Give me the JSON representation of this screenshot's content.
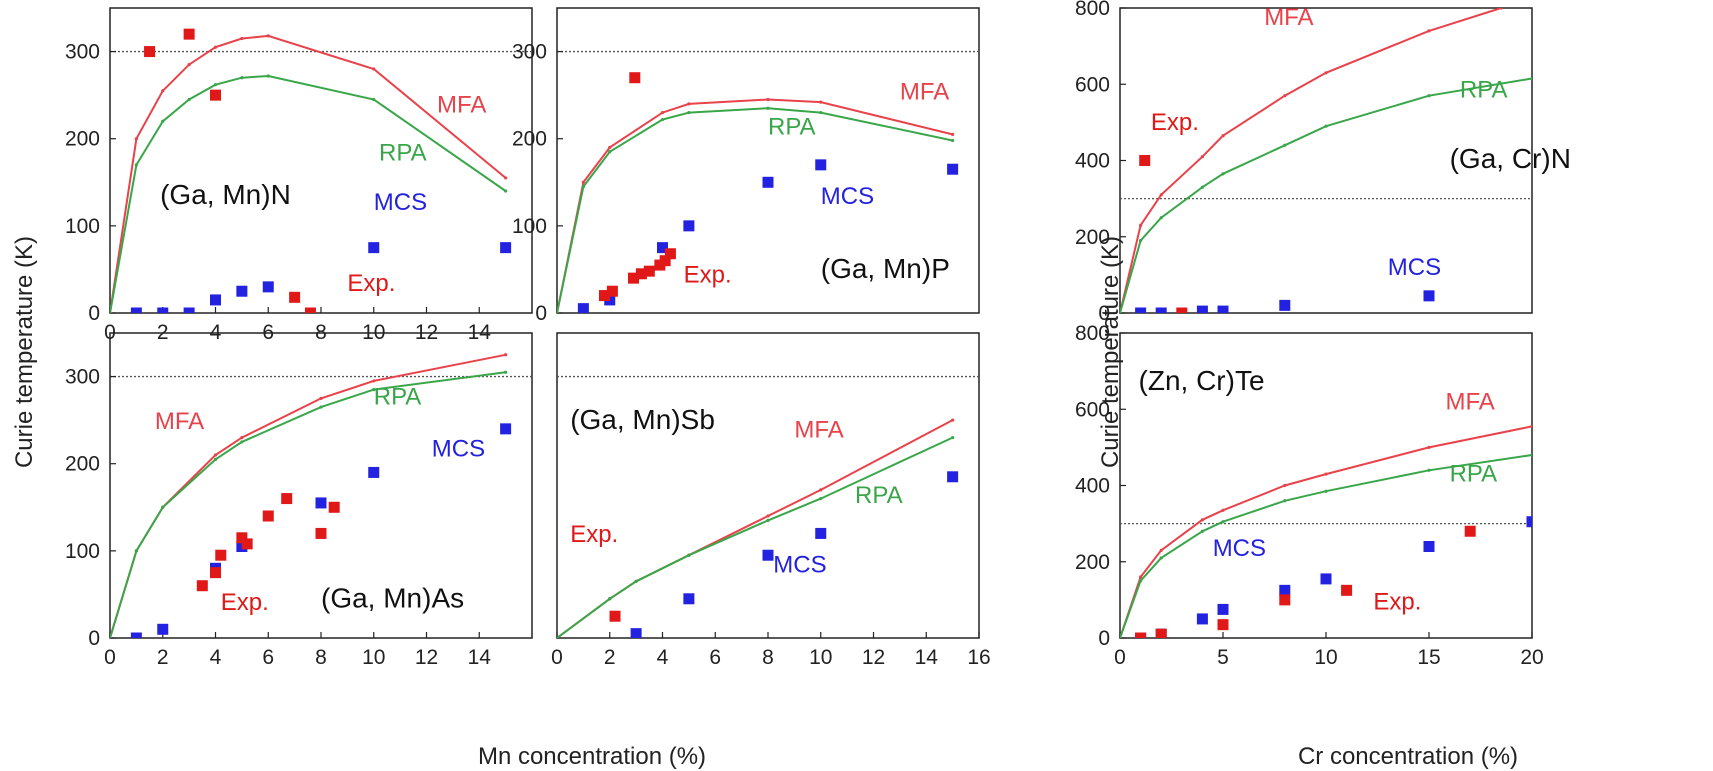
{
  "figure": {
    "mn_xlabel": "Mn concentration (%)",
    "cr_xlabel": "Cr concentration (%)",
    "ylabel": "Curie temperature (K)"
  },
  "colors": {
    "mfa": "#e8424a",
    "rpa": "#3aa64a",
    "mcs": "#2222e0",
    "exp": "#e01818",
    "axis": "#222222",
    "ref": "#555555"
  },
  "chart_data": [
    {
      "id": "gamnn",
      "type": "line",
      "title": "(Ga, Mn)N",
      "xlim": [
        0,
        16
      ],
      "ylim": [
        0,
        350
      ],
      "xticks": [
        0,
        2,
        4,
        6,
        8,
        10,
        12,
        14
      ],
      "yticks": [
        0,
        100,
        200,
        300
      ],
      "reference_line": 300,
      "series": [
        {
          "name": "MFA",
          "kind": "line",
          "color": "#e8424a",
          "x": [
            0,
            1,
            2,
            3,
            4,
            5,
            6,
            10,
            15
          ],
          "y": [
            0,
            200,
            255,
            285,
            305,
            315,
            318,
            280,
            155
          ]
        },
        {
          "name": "RPA",
          "kind": "line",
          "color": "#3aa64a",
          "x": [
            0,
            1,
            2,
            3,
            4,
            5,
            6,
            10,
            15
          ],
          "y": [
            0,
            170,
            220,
            245,
            262,
            270,
            272,
            245,
            140
          ]
        },
        {
          "name": "MCS",
          "kind": "points",
          "color": "#2222e0",
          "x": [
            1,
            2,
            3,
            4,
            5,
            6,
            10,
            15
          ],
          "y": [
            0,
            0,
            0,
            15,
            25,
            30,
            75,
            75
          ]
        },
        {
          "name": "Exp.",
          "kind": "points",
          "color": "#e01818",
          "x": [
            1.5,
            3,
            4,
            7,
            7.6
          ],
          "y": [
            300,
            320,
            250,
            18,
            0
          ]
        }
      ],
      "labels": {
        "MFA": "MFA",
        "RPA": "RPA",
        "MCS": "MCS",
        "Exp.": "Exp."
      }
    },
    {
      "id": "gamnp",
      "type": "line",
      "title": "(Ga, Mn)P",
      "xlim": [
        0,
        16
      ],
      "ylim": [
        0,
        350
      ],
      "xticks": [],
      "yticks": [
        0,
        100,
        200,
        300
      ],
      "reference_line": 300,
      "series": [
        {
          "name": "MFA",
          "kind": "line",
          "color": "#e8424a",
          "x": [
            0,
            1,
            2,
            4,
            5,
            8,
            10,
            15
          ],
          "y": [
            0,
            150,
            190,
            230,
            240,
            245,
            242,
            205
          ]
        },
        {
          "name": "RPA",
          "kind": "line",
          "color": "#3aa64a",
          "x": [
            0,
            1,
            2,
            4,
            5,
            8,
            10,
            15
          ],
          "y": [
            0,
            145,
            185,
            222,
            230,
            235,
            230,
            198
          ]
        },
        {
          "name": "MCS",
          "kind": "points",
          "color": "#2222e0",
          "x": [
            1,
            2,
            4,
            5,
            8,
            10,
            15
          ],
          "y": [
            5,
            15,
            75,
            100,
            150,
            170,
            165
          ]
        },
        {
          "name": "Exp.",
          "kind": "points",
          "color": "#e01818",
          "x": [
            1.8,
            2.1,
            2.9,
            3.2,
            3.5,
            3.9,
            4.1,
            4.3,
            2.95
          ],
          "y": [
            20,
            25,
            40,
            45,
            48,
            55,
            60,
            68,
            270
          ]
        }
      ],
      "labels": {
        "MFA": "MFA",
        "RPA": "RPA",
        "MCS": "MCS",
        "Exp.": "Exp."
      }
    },
    {
      "id": "gamnas",
      "type": "line",
      "title": "(Ga, Mn)As",
      "xlim": [
        0,
        16
      ],
      "ylim": [
        0,
        350
      ],
      "xticks": [
        0,
        2,
        4,
        6,
        8,
        10,
        12,
        14
      ],
      "yticks": [
        0,
        100,
        200,
        300
      ],
      "reference_line": 300,
      "series": [
        {
          "name": "MFA",
          "kind": "line",
          "color": "#e8424a",
          "x": [
            0,
            1,
            2,
            4,
            5,
            8,
            10,
            15
          ],
          "y": [
            0,
            100,
            150,
            210,
            230,
            275,
            295,
            325
          ]
        },
        {
          "name": "RPA",
          "kind": "line",
          "color": "#3aa64a",
          "x": [
            0,
            1,
            2,
            4,
            5,
            8,
            10,
            15
          ],
          "y": [
            0,
            100,
            150,
            205,
            225,
            265,
            285,
            305
          ]
        },
        {
          "name": "MCS",
          "kind": "points",
          "color": "#2222e0",
          "x": [
            1,
            2,
            4,
            5,
            8,
            10,
            15
          ],
          "y": [
            0,
            10,
            80,
            105,
            155,
            190,
            240
          ]
        },
        {
          "name": "Exp.",
          "kind": "points",
          "color": "#e01818",
          "x": [
            3.5,
            4,
            4.2,
            5,
            5.2,
            6,
            6.7,
            8,
            8.5
          ],
          "y": [
            60,
            75,
            95,
            115,
            108,
            140,
            160,
            120,
            150
          ]
        }
      ],
      "labels": {
        "MFA": "MFA",
        "RPA": "RPA",
        "MCS": "MCS",
        "Exp.": "Exp."
      }
    },
    {
      "id": "gamnsb",
      "type": "line",
      "title": "(Ga, Mn)Sb",
      "xlim": [
        0,
        16
      ],
      "ylim": [
        0,
        350
      ],
      "xticks": [
        0,
        2,
        4,
        6,
        8,
        10,
        12,
        14,
        16
      ],
      "yticks": [],
      "reference_line": 300,
      "series": [
        {
          "name": "MFA",
          "kind": "line",
          "color": "#e8424a",
          "x": [
            0,
            2,
            3,
            5,
            8,
            10,
            15
          ],
          "y": [
            0,
            45,
            65,
            95,
            140,
            170,
            250
          ]
        },
        {
          "name": "RPA",
          "kind": "line",
          "color": "#3aa64a",
          "x": [
            0,
            2,
            3,
            5,
            8,
            10,
            15
          ],
          "y": [
            0,
            45,
            65,
            95,
            135,
            160,
            230
          ]
        },
        {
          "name": "MCS",
          "kind": "points",
          "color": "#2222e0",
          "x": [
            3,
            5,
            8,
            10,
            15
          ],
          "y": [
            5,
            45,
            95,
            120,
            185
          ]
        },
        {
          "name": "Exp.",
          "kind": "points",
          "color": "#e01818",
          "x": [
            2.2
          ],
          "y": [
            25
          ]
        }
      ],
      "labels": {
        "MFA": "MFA",
        "RPA": "RPA",
        "MCS": "MCS",
        "Exp.": "Exp."
      }
    },
    {
      "id": "gacrn",
      "type": "line",
      "title": "(Ga, Cr)N",
      "xlim": [
        0,
        20
      ],
      "ylim": [
        0,
        800
      ],
      "xticks": [],
      "yticks": [
        0,
        200,
        400,
        600,
        800
      ],
      "reference_line": 300,
      "series": [
        {
          "name": "MFA",
          "kind": "line",
          "color": "#e8424a",
          "x": [
            0,
            1,
            2,
            4,
            5,
            8,
            10,
            15,
            18.5
          ],
          "y": [
            0,
            230,
            310,
            410,
            465,
            570,
            630,
            740,
            800
          ]
        },
        {
          "name": "RPA",
          "kind": "line",
          "color": "#3aa64a",
          "x": [
            0,
            1,
            2,
            4,
            5,
            8,
            10,
            15,
            20
          ],
          "y": [
            0,
            190,
            250,
            330,
            365,
            440,
            490,
            570,
            615
          ]
        },
        {
          "name": "MCS",
          "kind": "points",
          "color": "#2222e0",
          "x": [
            1,
            2,
            4,
            5,
            8,
            15
          ],
          "y": [
            0,
            0,
            5,
            5,
            20,
            45
          ]
        },
        {
          "name": "Exp.",
          "kind": "points",
          "color": "#e01818",
          "x": [
            1.2,
            3
          ],
          "y": [
            400,
            0
          ]
        }
      ],
      "labels": {
        "MFA": "MFA",
        "RPA": "RPA",
        "MCS": "MCS",
        "Exp.": "Exp."
      }
    },
    {
      "id": "zncrte",
      "type": "line",
      "title": "(Zn, Cr)Te",
      "xlim": [
        0,
        20
      ],
      "ylim": [
        0,
        800
      ],
      "xticks": [
        0,
        5,
        10,
        15,
        20
      ],
      "yticks": [
        0,
        200,
        400,
        600,
        800
      ],
      "reference_line": 300,
      "series": [
        {
          "name": "MFA",
          "kind": "line",
          "color": "#e8424a",
          "x": [
            0,
            1,
            2,
            4,
            5,
            8,
            10,
            15,
            20
          ],
          "y": [
            0,
            160,
            230,
            310,
            335,
            400,
            430,
            500,
            555
          ]
        },
        {
          "name": "RPA",
          "kind": "line",
          "color": "#3aa64a",
          "x": [
            0,
            1,
            2,
            4,
            5,
            8,
            10,
            15,
            20
          ],
          "y": [
            0,
            150,
            210,
            280,
            305,
            360,
            385,
            440,
            480
          ]
        },
        {
          "name": "MCS",
          "kind": "points",
          "color": "#2222e0",
          "x": [
            1,
            2,
            4,
            5,
            8,
            10,
            15,
            20
          ],
          "y": [
            0,
            10,
            50,
            75,
            125,
            155,
            240,
            305
          ]
        },
        {
          "name": "Exp.",
          "kind": "points",
          "color": "#e01818",
          "x": [
            1,
            2,
            5,
            8,
            11,
            17
          ],
          "y": [
            0,
            10,
            35,
            100,
            125,
            280
          ]
        }
      ],
      "labels": {
        "MFA": "MFA",
        "RPA": "RPA",
        "MCS": "MCS",
        "Exp.": "Exp."
      }
    }
  ]
}
